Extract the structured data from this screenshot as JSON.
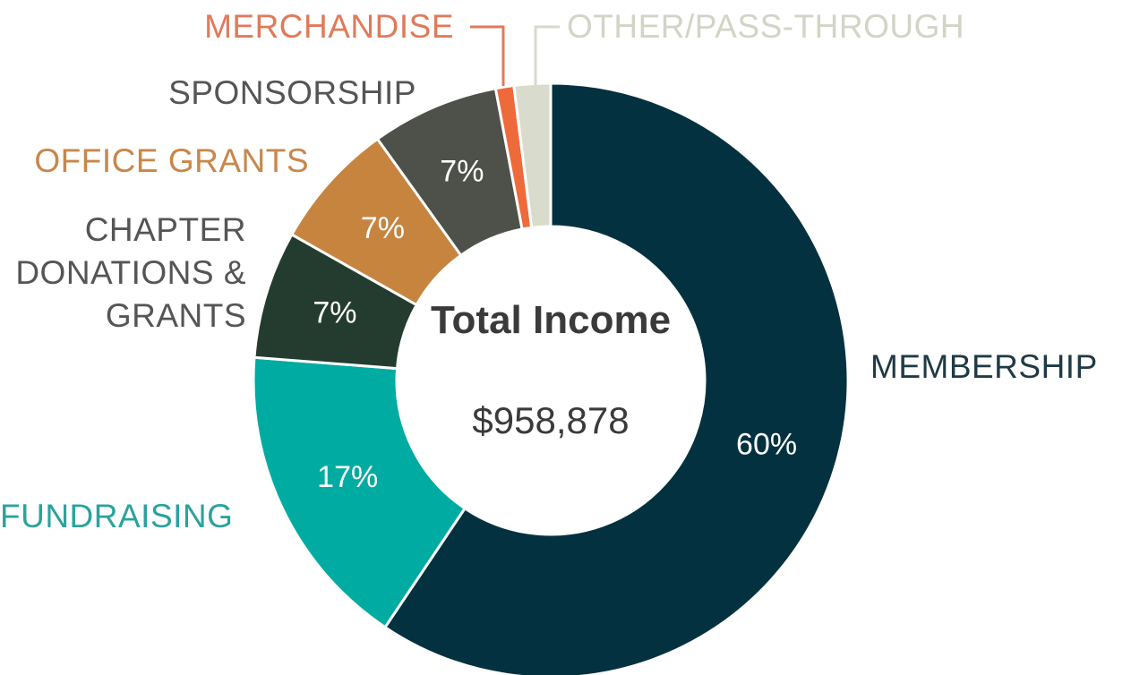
{
  "chart_data": {
    "type": "donut",
    "center_title": "Total Income",
    "center_value": "$958,878",
    "categories": [
      "MEMBERSHIP",
      "FUNDRAISING",
      "CHAPTER DONATIONS & GRANTS",
      "OFFICE GRANTS",
      "SPONSORSHIP",
      "MERCHANDISE",
      "OTHER/PASS-THROUGH"
    ],
    "values": [
      60,
      17,
      7,
      7,
      7,
      1,
      2
    ],
    "value_labels": [
      "60%",
      "17%",
      "7%",
      "7%",
      "7%",
      null,
      null
    ],
    "colors": [
      "#03313f",
      "#00aba2",
      "#243c2f",
      "#c6843f",
      "#4d5149",
      "#ee6a3b",
      "#d9dccc"
    ]
  }
}
